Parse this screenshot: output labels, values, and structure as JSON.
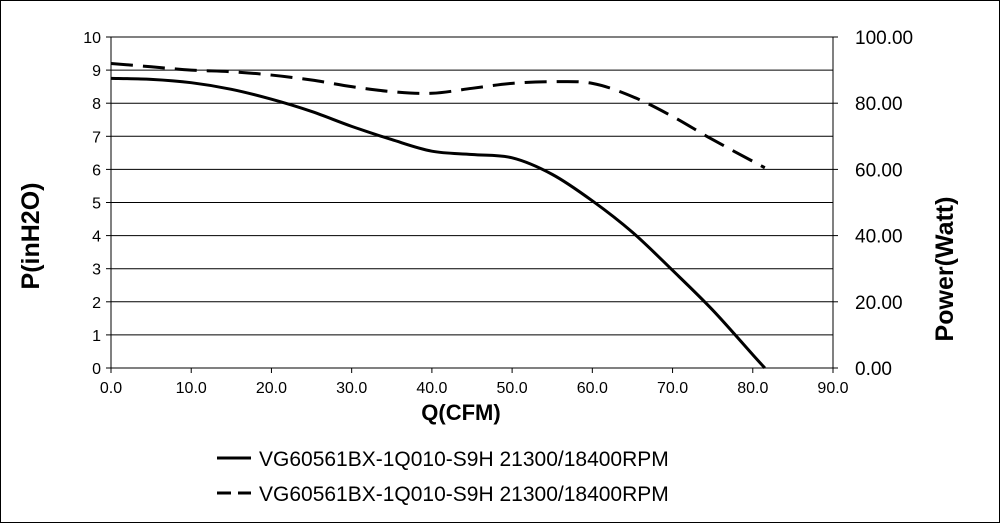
{
  "chart_data": {
    "type": "line",
    "xlabel": "Q(CFM)",
    "ylabel_left": "P(inH2O)",
    "ylabel_right": "Power(Watt)",
    "xlim": [
      0,
      90
    ],
    "ylim_left": [
      0,
      10
    ],
    "ylim_right": [
      0,
      100
    ],
    "x_ticks": [
      "0.0",
      "10.0",
      "20.0",
      "30.0",
      "40.0",
      "50.0",
      "60.0",
      "70.0",
      "80.0",
      "90.0"
    ],
    "y_left_ticks": [
      "0",
      "1",
      "2",
      "3",
      "4",
      "5",
      "6",
      "7",
      "8",
      "9",
      "10"
    ],
    "y_right_ticks": [
      "0.00",
      "20.00",
      "40.00",
      "60.00",
      "80.00",
      "100.00"
    ],
    "grid": "horizontal",
    "legend_position": "bottom-center",
    "series": [
      {
        "name": "VG60561BX-1Q010-S9H 21300/18400RPM",
        "axis": "left",
        "style": "solid",
        "color": "#000000",
        "x": [
          0,
          5,
          10,
          15,
          20,
          25,
          30,
          35,
          40,
          45,
          50,
          55,
          60,
          65,
          70,
          75,
          80,
          81.5
        ],
        "y": [
          8.75,
          8.72,
          8.62,
          8.42,
          8.12,
          7.75,
          7.3,
          6.9,
          6.55,
          6.45,
          6.35,
          5.85,
          5.05,
          4.1,
          2.95,
          1.75,
          0.4,
          0
        ]
      },
      {
        "name": "VG60561BX-1Q010-S9H 21300/18400RPM",
        "axis": "right",
        "style": "dashed",
        "color": "#000000",
        "x": [
          0,
          5,
          10,
          15,
          20,
          25,
          30,
          35,
          40,
          45,
          50,
          55,
          60,
          65,
          70,
          75,
          81.5
        ],
        "y": [
          92.0,
          91.0,
          90.0,
          89.5,
          88.5,
          87.0,
          85.0,
          83.5,
          83.0,
          84.5,
          86.0,
          86.5,
          86.0,
          82.0,
          76.0,
          69.0,
          60.5
        ]
      }
    ]
  }
}
